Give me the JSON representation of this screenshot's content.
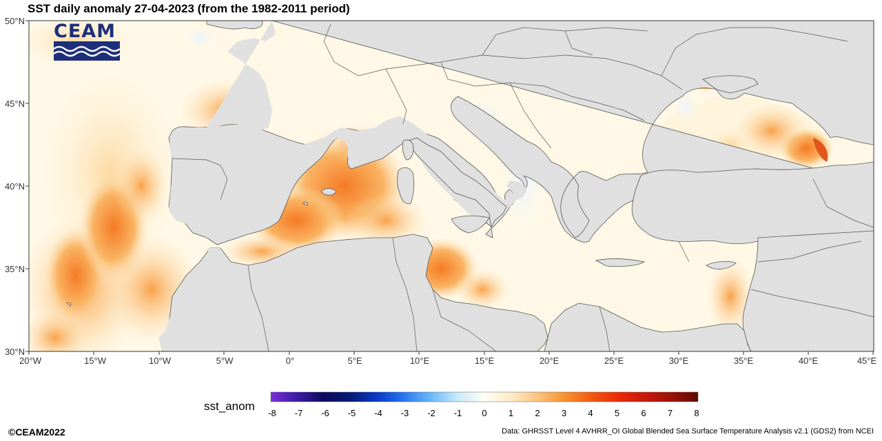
{
  "title": "SST daily anomaly 27-04-2023 (from the 1982-2011 period)",
  "logo": {
    "text": "CEAM",
    "icon": "waves-icon",
    "color": "#1e2f7a"
  },
  "axes": {
    "lat_labels": [
      "50°N",
      "45°N",
      "40°N",
      "35°N",
      "30°N"
    ],
    "lon_labels": [
      "20°W",
      "15°W",
      "10°W",
      "5°W",
      "0°",
      "5°E",
      "10°E",
      "15°E",
      "20°E",
      "25°E",
      "30°E",
      "35°E",
      "40°E",
      "45°E"
    ],
    "lat_range": [
      30,
      50
    ],
    "lon_range": [
      -20,
      45
    ]
  },
  "colorbar": {
    "title": "sst_anom",
    "ticks": [
      "-8",
      "-7",
      "-6",
      "-5",
      "-4",
      "-3",
      "-2",
      "-1",
      "0",
      "1",
      "2",
      "3",
      "4",
      "5",
      "6",
      "7",
      "8"
    ],
    "range": [
      -8,
      8
    ],
    "colors": [
      "#6a1fc4",
      "#2d0f8f",
      "#000a4a",
      "#0a2aa8",
      "#1e5cf0",
      "#4a9af5",
      "#9ed4fa",
      "#e8f6ff",
      "#fffdf0",
      "#fde3b6",
      "#f9a24a",
      "#f06418",
      "#ef2a0a",
      "#d01a0a",
      "#a81208",
      "#6a0a04"
    ]
  },
  "footer": {
    "copyright": "©CEAM2022",
    "source": "Data: GHRSST Level 4 AVHRR_OI Global Blended Sea Surface Temperature Analysis v2.1 (GDS2) from NCEI"
  },
  "palette": {
    "land": "#e0e0e0",
    "border": "#555555",
    "sea_neutral": "#fff8e6"
  }
}
